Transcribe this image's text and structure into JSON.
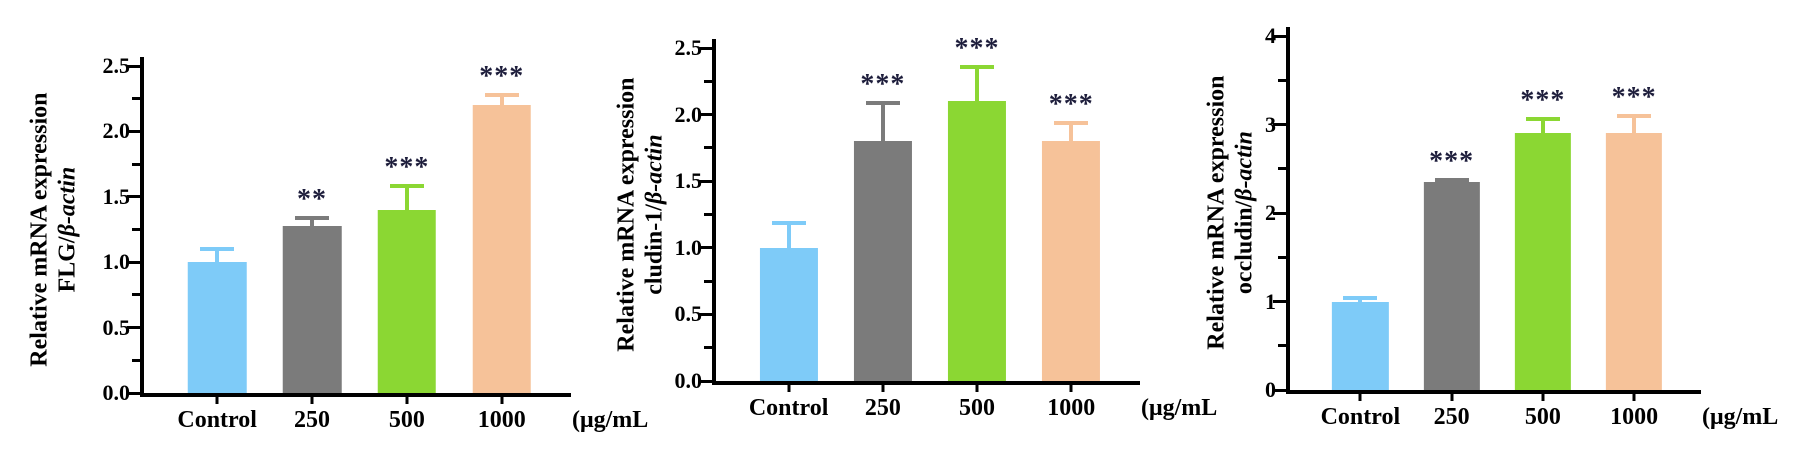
{
  "figure": {
    "background": "#ffffff"
  },
  "palette": {
    "control_blue": "#7ECBF8",
    "dose_gray": "#7B7B7B",
    "dose_green": "#8BD733",
    "dose_peach": "#F6C299",
    "axis_black": "#000000",
    "star_color": "#1E1E3C"
  },
  "chart_data": [
    {
      "type": "bar",
      "ylabel_line1": "Relative mRNA expression",
      "ylabel_line2_gene": "FLG/",
      "ylabel_line2_ref": "β-actin",
      "categories": [
        "Control",
        "250",
        "500",
        "1000"
      ],
      "values": [
        1.0,
        1.28,
        1.4,
        2.2
      ],
      "errors": [
        0.12,
        0.07,
        0.2,
        0.09
      ],
      "significance": [
        "",
        "**",
        "***",
        "***"
      ],
      "bar_colors": [
        "#7ECBF8",
        "#7B7B7B",
        "#8BD733",
        "#F6C299"
      ],
      "unit_label": "(μg/mL",
      "ylim": [
        0,
        2.5
      ],
      "ytick_step": 0.5,
      "minor_step": 0.25,
      "ytick_labels": [
        "0.0",
        "0.5",
        "1.0",
        "1.5",
        "2.0",
        "2.5"
      ],
      "grid": false
    },
    {
      "type": "bar",
      "ylabel_line1": "Relative mRNA expression",
      "ylabel_line2_gene": "cludin-1/",
      "ylabel_line2_ref": "β-actin",
      "categories": [
        "Control",
        "250",
        "500",
        "1000"
      ],
      "values": [
        1.0,
        1.8,
        2.1,
        1.8
      ],
      "errors": [
        0.2,
        0.3,
        0.27,
        0.15
      ],
      "significance": [
        "",
        "***",
        "***",
        "***"
      ],
      "bar_colors": [
        "#7ECBF8",
        "#7B7B7B",
        "#8BD733",
        "#F6C299"
      ],
      "unit_label": "(μg/mL",
      "ylim": [
        0,
        2.5
      ],
      "ytick_step": 0.5,
      "minor_step": 0.25,
      "ytick_labels": [
        "0.0",
        "0.5",
        "1.0",
        "1.5",
        "2.0",
        "2.5"
      ],
      "grid": false
    },
    {
      "type": "bar",
      "ylabel_line1": "Relative mRNA expression",
      "ylabel_line2_gene": "occludin/",
      "ylabel_line2_ref": "β-actin",
      "categories": [
        "Control",
        "250",
        "500",
        "1000"
      ],
      "values": [
        1.0,
        2.35,
        2.9,
        2.9
      ],
      "errors": [
        0.06,
        0.05,
        0.18,
        0.22
      ],
      "significance": [
        "",
        "***",
        "***",
        "***"
      ],
      "bar_colors": [
        "#7ECBF8",
        "#7B7B7B",
        "#8BD733",
        "#F6C299"
      ],
      "unit_label": "(μg/mL",
      "ylim": [
        0,
        4
      ],
      "ytick_step": 1,
      "minor_step": 0.5,
      "ytick_labels": [
        "0",
        "1",
        "2",
        "3",
        "4"
      ],
      "grid": false
    }
  ]
}
